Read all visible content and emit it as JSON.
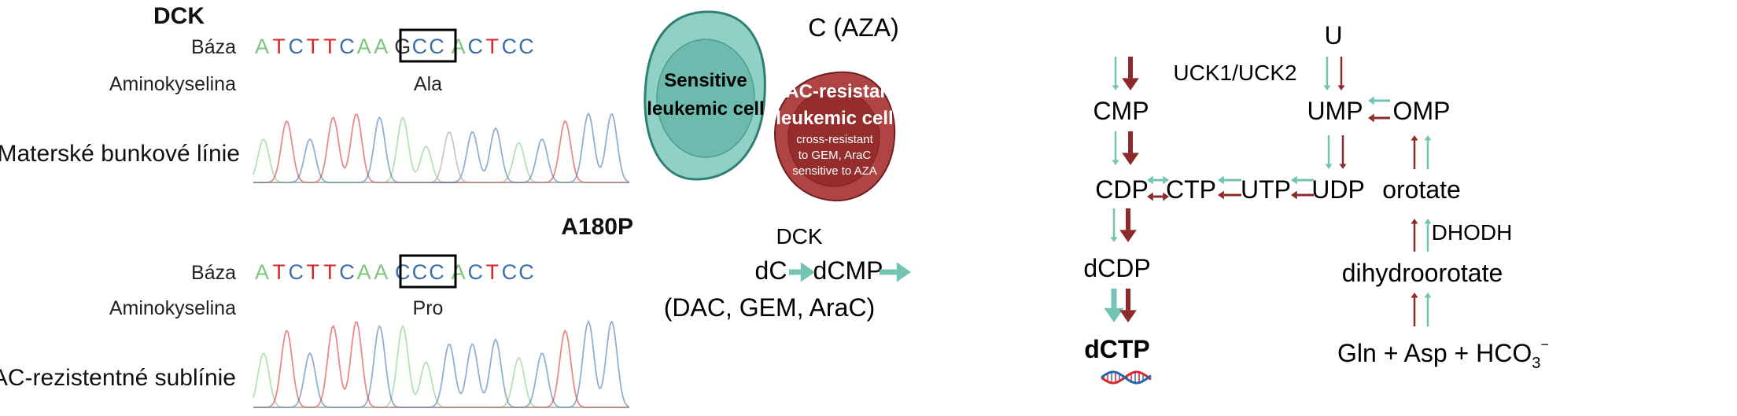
{
  "colors": {
    "A": "#7dc47d",
    "T": "#d9262c",
    "C": "#3b6fa8",
    "G": "#333333",
    "teal": "#74c4b4",
    "red": "#8b2a2a",
    "teal_cell": "#8fd1c6",
    "teal_nucleus": "#6dbbae",
    "red_cell": "#b04444",
    "red_nucleus": "#962d2d"
  },
  "left": {
    "gene": "DCK",
    "mutation": "A180P",
    "wildtype": {
      "base_label": "Báza",
      "aa_label": "Aminokyselina",
      "sequence": "ATCTTCAAGCCACTCC",
      "codon": "GCC",
      "amino_acid": "Ala",
      "line_label": "Materské bunkové línie"
    },
    "mutant": {
      "base_label": "Báza",
      "aa_label": "Aminokyselina",
      "sequence": "ATCTTCAACCCACTCC",
      "codon": "CCC",
      "amino_acid": "Pro",
      "line_label": "DAC-rezistentné sublínie"
    }
  },
  "cells": {
    "sensitive": {
      "line1": "Sensitive",
      "line2": "leukemic cell"
    },
    "resistant": {
      "line1": "DAC-resistant",
      "line2": "leukemic cell",
      "note1": "cross-resistant",
      "note2": "to GEM, AraC",
      "note3": "sensitive to AZA"
    }
  },
  "pathway": {
    "c_aza": "C (AZA)",
    "cmp": "CMP",
    "cdp": "CDP",
    "dcdp": "dCDP",
    "dctp": "dCTP",
    "ctp": "CTP",
    "utp": "UTP",
    "udp": "UDP",
    "u": "U",
    "ump": "UMP",
    "omp": "OMP",
    "orotate": "orotate",
    "dihydroorotate": "dihydroorotate",
    "gln_asp": "Gln + Asp + HCO",
    "hco_sub": "3",
    "hco_sup": "−",
    "uck": "UCK1/UCK2",
    "dhodh": "DHODH",
    "dck": "DCK",
    "dc": "dC",
    "dcmp": "dCMP",
    "drugs": "(DAC, GEM, AraC)",
    "dna_icon": "dna-icon"
  }
}
